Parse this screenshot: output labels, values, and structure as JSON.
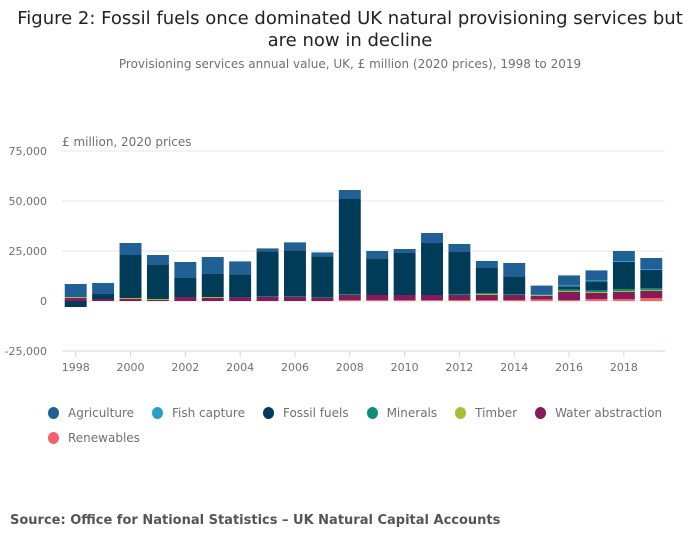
{
  "title": "Figure 2: Fossil fuels once dominated UK natural provisioning services but are now in decline",
  "subtitle": "Provisioning services annual value, UK, £ million (2020 prices), 1998 to 2019",
  "source": "Source: Office for National Statistics – UK Natural Capital Accounts",
  "chart_data": {
    "type": "bar",
    "stacked": true,
    "title": "Figure 2: Fossil fuels once dominated UK natural provisioning services but are now in decline",
    "ylabel": "£ million, 2020 prices",
    "ylim": [
      -25000,
      75000
    ],
    "yticks": [
      "75,000",
      "50,000",
      "25,000",
      "0",
      "-25,000"
    ],
    "xticks": [
      "1998",
      "2000",
      "2002",
      "2004",
      "2006",
      "2008",
      "2010",
      "2012",
      "2014",
      "2016",
      "2018"
    ],
    "categories": [
      "1998",
      "1999",
      "2000",
      "2001",
      "2002",
      "2003",
      "2004",
      "2005",
      "2006",
      "2007",
      "2008",
      "2009",
      "2010",
      "2011",
      "2012",
      "2013",
      "2014",
      "2015",
      "2016",
      "2017",
      "2018",
      "2019"
    ],
    "series": [
      {
        "name": "Renewables",
        "color": "#f66068",
        "values": [
          0,
          0,
          0,
          0,
          0,
          0,
          0,
          0,
          0,
          0,
          500,
          500,
          500,
          500,
          500,
          500,
          500,
          800,
          500,
          1000,
          1000,
          1500
        ]
      },
      {
        "name": "Water abstraction",
        "color": "#871a5b",
        "values": [
          1500,
          1000,
          1000,
          500,
          2000,
          1500,
          1800,
          2000,
          2000,
          1500,
          2500,
          2500,
          2500,
          2500,
          2500,
          2500,
          2500,
          1800,
          4000,
          3000,
          3500,
          3500
        ]
      },
      {
        "name": "Timber",
        "color": "#a8bd3a",
        "values": [
          500,
          0,
          500,
          500,
          0,
          500,
          0,
          0,
          0,
          0,
          0,
          0,
          0,
          0,
          0,
          500,
          0,
          300,
          500,
          500,
          500,
          500
        ]
      },
      {
        "name": "Minerals",
        "color": "#118c7b",
        "values": [
          0,
          0,
          0,
          0,
          0,
          0,
          0,
          300,
          300,
          300,
          500,
          0,
          0,
          0,
          500,
          500,
          500,
          300,
          800,
          800,
          1000,
          1000
        ]
      },
      {
        "name": "Fossil fuels",
        "color": "#003c57",
        "values": [
          -3000,
          2500,
          21500,
          17000,
          9500,
          11500,
          11500,
          22500,
          23000,
          20500,
          47500,
          18000,
          21000,
          26000,
          21000,
          12500,
          8500,
          0,
          1500,
          4500,
          13500,
          9000
        ]
      },
      {
        "name": "Fish capture",
        "color": "#27a0cc",
        "values": [
          0,
          0,
          0,
          0,
          0,
          0,
          0,
          0,
          0,
          0,
          0,
          0,
          0,
          0,
          0,
          0,
          0,
          0,
          500,
          500,
          500,
          500
        ]
      },
      {
        "name": "Agriculture",
        "color": "#206095",
        "values": [
          6500,
          5500,
          6000,
          5000,
          8000,
          8500,
          6500,
          1500,
          4000,
          2000,
          4500,
          4000,
          2000,
          5000,
          4000,
          3500,
          7000,
          4500,
          5000,
          5000,
          5000,
          5500
        ]
      }
    ]
  },
  "legend": [
    {
      "label": "Agriculture",
      "color": "#206095"
    },
    {
      "label": "Fish capture",
      "color": "#27a0cc"
    },
    {
      "label": "Fossil fuels",
      "color": "#003c57"
    },
    {
      "label": "Minerals",
      "color": "#118c7b"
    },
    {
      "label": "Timber",
      "color": "#a8bd3a"
    },
    {
      "label": "Water abstraction",
      "color": "#871a5b"
    },
    {
      "label": "Renewables",
      "color": "#f66068"
    }
  ]
}
